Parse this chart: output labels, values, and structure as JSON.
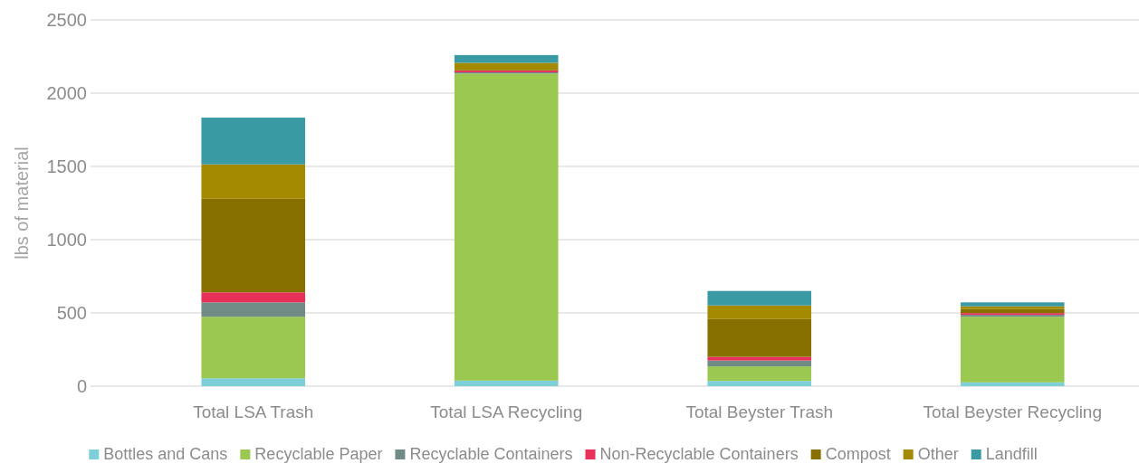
{
  "chart_data": {
    "type": "bar",
    "stacked": true,
    "ylabel": "lbs of material",
    "categories": [
      "Total LSA Trash",
      "Total LSA Recycling",
      "Total Beyster Trash",
      "Total Beyster Recycling"
    ],
    "series": [
      {
        "name": "Bottles and Cans",
        "color": "#7fcfd9",
        "values": [
          54,
          38,
          36,
          26
        ]
      },
      {
        "name": "Recyclable Paper",
        "color": "#9bc850",
        "values": [
          420,
          2096,
          99,
          448
        ]
      },
      {
        "name": "Recyclable Containers",
        "color": "#6f8c87",
        "values": [
          98,
          8,
          40,
          13
        ]
      },
      {
        "name": "Non-Recyclable Containers",
        "color": "#e8305a",
        "values": [
          68,
          12,
          25,
          12
        ]
      },
      {
        "name": "Compost",
        "color": "#876f00",
        "values": [
          639,
          5,
          258,
          27
        ]
      },
      {
        "name": "Other",
        "color": "#a38a00",
        "values": [
          235,
          48,
          93,
          19
        ]
      },
      {
        "name": "Landfill",
        "color": "#3a9aa3",
        "values": [
          319,
          53,
          99,
          27
        ]
      }
    ],
    "ylim": [
      0,
      2500
    ],
    "yticks": [
      0,
      500,
      1000,
      1500,
      2000,
      2500
    ],
    "grid": "y",
    "legend": "bottom"
  }
}
